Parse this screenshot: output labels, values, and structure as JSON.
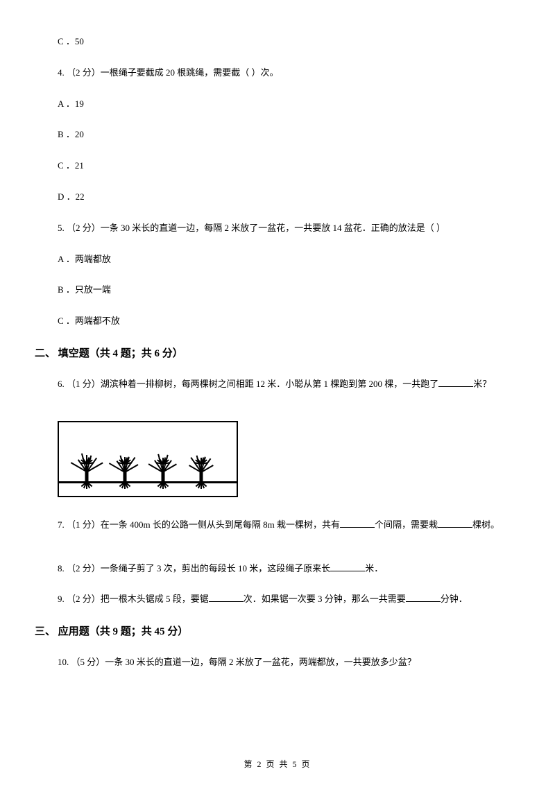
{
  "q3_option_c": "C ．50",
  "q4": {
    "text": "4.  （2 分）一根绳子要截成 20 根跳绳，需要截（     ）次。",
    "options": {
      "a": "A ．19",
      "b": "B ．20",
      "c": "C ．21",
      "d": "D ．22"
    }
  },
  "q5": {
    "text": "5.  （2 分）一条 30 米长的直道一边，每隔 2 米放了一盆花，一共要放 14 盆花．正确的放法是（     ）",
    "options": {
      "a": "A ．两端都放",
      "b": "B ．只放一端",
      "c": "C ．两端都不放"
    }
  },
  "section2": {
    "header": "二、 填空题（共 4 题；共 6 分）"
  },
  "q6": {
    "prefix": "6.  （1 分）湖滨种着一排柳树，每两棵树之间相距 12 米．小聪从第 1 棵跑到第 200 棵，一共跑了",
    "suffix": "米？"
  },
  "q7": {
    "prefix": "7.  （1 分）在一条 400m 长的公路一侧从头到尾每隔 8m 栽一棵树，共有",
    "mid": "个间隔，需要栽",
    "suffix": "棵树。"
  },
  "q8": {
    "prefix": "8.  （2 分）一条绳子剪了 3 次，剪出的每段长 10 米，这段绳子原来长",
    "suffix": "米．"
  },
  "q9": {
    "prefix": "9.  （2 分）把一根木头锯成 5 段，要锯",
    "mid": "次．如果锯一次要 3 分钟，那么一共需要",
    "suffix": "分钟．"
  },
  "section3": {
    "header": "三、 应用题（共 9 题；共 45 分）"
  },
  "q10": {
    "text": "10.  （5 分）一条 30 米长的直道一边，每隔 2 米放了一盆花，两端都放，一共要放多少盆？"
  },
  "footer": "第 2 页 共 5 页",
  "image": {
    "tree_positions": [
      20,
      75,
      130,
      185
    ],
    "color": "#000000"
  }
}
